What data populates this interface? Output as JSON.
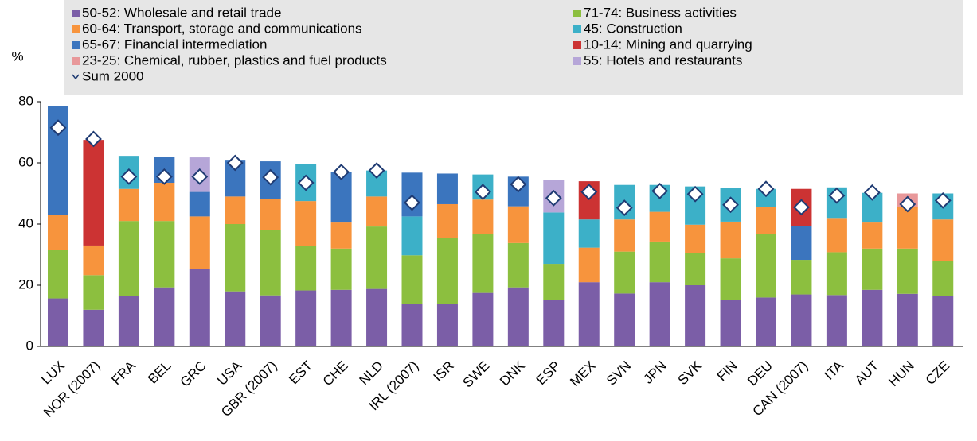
{
  "chart_data": {
    "type": "stacked_bar",
    "y_label": "%",
    "categories": [
      "LUX",
      "NOR (2007)",
      "FRA",
      "BEL",
      "GRC",
      "USA",
      "GBR (2007)",
      "EST",
      "CHE",
      "NLD",
      "IRL (2007)",
      "ISR",
      "SWE",
      "DNK",
      "ESP",
      "MEX",
      "SVN",
      "JPN",
      "SVK",
      "FIN",
      "DEU",
      "CAN (2007)",
      "ITA",
      "AUT",
      "HUN",
      "CZE"
    ],
    "series": [
      {
        "name": "50-52: Wholesale and retail trade",
        "color": "#7b5ea7",
        "values": [
          15.7,
          12,
          16.5,
          19.3,
          25.2,
          18,
          16.7,
          18.3,
          18.5,
          18.8,
          14,
          13.8,
          17.5,
          19.3,
          15.2,
          21,
          17.3,
          21,
          20,
          15.2,
          16,
          17,
          16.8,
          18.5,
          17.2,
          16.6
        ]
      },
      {
        "name": "71-74: Business activities",
        "color": "#8cbf3f",
        "values": [
          15.8,
          11.3,
          24.5,
          21.7,
          null,
          22,
          21.3,
          14.5,
          13.5,
          20.4,
          15.8,
          21.7,
          19.3,
          14.5,
          11.8,
          null,
          13.7,
          13.3,
          10.5,
          13.6,
          20.8,
          11.3,
          14,
          13.5,
          14.8,
          11.2
        ]
      },
      {
        "name": "60-64: Transport, storage and communications",
        "color": "#f7943d",
        "values": [
          11.5,
          9.7,
          10.5,
          12.5,
          17.3,
          9,
          10.3,
          14.7,
          8.5,
          9.8,
          null,
          11,
          11.2,
          12,
          null,
          11.3,
          10.5,
          9.7,
          9.3,
          12,
          8.7,
          null,
          11.2,
          8.5,
          13.5,
          13.7
        ]
      },
      {
        "name": "45: Construction",
        "color": "#3cb0c8",
        "values": [
          null,
          null,
          10.8,
          null,
          null,
          null,
          null,
          12,
          null,
          8.5,
          12.7,
          null,
          8.2,
          null,
          16.8,
          9.2,
          11.3,
          8.8,
          12.5,
          11,
          6,
          null,
          10,
          9.7,
          null,
          8.5
        ]
      },
      {
        "name": "65-67: Financial intermediation",
        "color": "#3b75be",
        "values": [
          35.5,
          null,
          null,
          8.5,
          8,
          12,
          12.2,
          null,
          16.5,
          null,
          14.3,
          10,
          null,
          9.7,
          null,
          null,
          null,
          null,
          null,
          null,
          null,
          11,
          null,
          null,
          null,
          null
        ]
      },
      {
        "name": "10-14: Mining and quarrying",
        "color": "#cc3333",
        "values": [
          null,
          34.5,
          null,
          null,
          null,
          null,
          null,
          null,
          null,
          null,
          null,
          null,
          null,
          null,
          null,
          12.5,
          null,
          null,
          null,
          null,
          null,
          12.2,
          null,
          null,
          null,
          null
        ]
      },
      {
        "name": "23-25: Chemical, rubber, plastics and fuel products",
        "color": "#e8989a",
        "values": [
          null,
          null,
          null,
          null,
          null,
          null,
          null,
          null,
          null,
          null,
          null,
          null,
          null,
          null,
          null,
          null,
          null,
          null,
          null,
          null,
          null,
          null,
          null,
          null,
          4.5,
          null
        ]
      },
      {
        "name": "55: Hotels and restaurants",
        "color": "#b6a6d8",
        "values": [
          null,
          null,
          null,
          null,
          11.3,
          null,
          null,
          null,
          null,
          null,
          null,
          null,
          null,
          null,
          10.7,
          null,
          null,
          null,
          null,
          null,
          null,
          null,
          null,
          null,
          null,
          null
        ]
      }
    ],
    "markers": {
      "name": "Sum 2000",
      "color": "#1f3b73",
      "values": [
        71.5,
        67.8,
        55.5,
        55.5,
        55.5,
        60,
        55.3,
        53.5,
        57,
        57.5,
        47,
        null,
        50.5,
        53,
        48.5,
        50.5,
        45.3,
        50.8,
        49.8,
        46.3,
        51.5,
        45.5,
        49.3,
        50.3,
        46.5,
        47.7
      ]
    },
    "ylim": [
      0,
      80
    ],
    "yticks": [
      0,
      20,
      40,
      60,
      80
    ],
    "grid": false
  }
}
